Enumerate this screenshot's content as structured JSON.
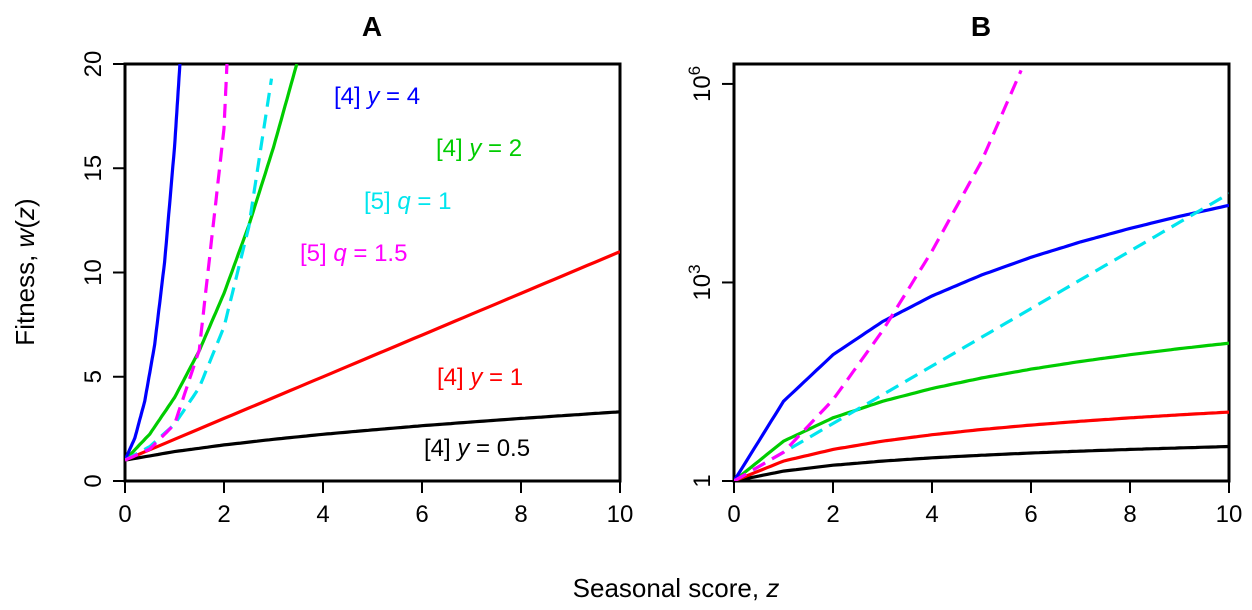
{
  "figure": {
    "xlabel_text": "Seasonal score, ",
    "xlabel_var": "z",
    "ylabel_text": "Fitness, ",
    "ylabel_fn": "w",
    "ylabel_open": "(",
    "ylabel_var": "z",
    "ylabel_close": ")"
  },
  "chart_data": [
    {
      "type": "line",
      "title": "A",
      "xlabel": "Seasonal score, z",
      "ylabel": "Fitness, w(z)",
      "xlim": [
        0,
        10
      ],
      "ylim": [
        0,
        20
      ],
      "y_scale": "linear",
      "xticks": [
        0,
        2,
        4,
        6,
        8,
        10
      ],
      "xtick_labels": [
        "0",
        "2",
        "4",
        "6",
        "8",
        "10"
      ],
      "yticks": [
        0,
        5,
        10,
        15,
        20
      ],
      "ytick_labels": [
        "0",
        "5",
        "10",
        "15",
        "20"
      ],
      "series": [
        {
          "id": "eq4-y0.5",
          "equation": "[4]",
          "param": "y",
          "param_value": "0.5",
          "color": "#000000",
          "dash": "solid",
          "x": [
            0,
            1,
            2,
            3,
            4,
            5,
            6,
            7,
            8,
            9,
            10
          ],
          "y": [
            1.0,
            1.41,
            1.73,
            2.0,
            2.24,
            2.45,
            2.65,
            2.83,
            3.0,
            3.16,
            3.32
          ]
        },
        {
          "id": "eq4-y1",
          "equation": "[4]",
          "param": "y",
          "param_value": "1",
          "color": "#ff0000",
          "dash": "solid",
          "x": [
            0,
            2,
            4,
            6,
            8,
            10
          ],
          "y": [
            1,
            3,
            5,
            7,
            9,
            11
          ]
        },
        {
          "id": "eq4-y2",
          "equation": "[4]",
          "param": "y",
          "param_value": "2",
          "color": "#00cc00",
          "dash": "solid",
          "x": [
            0,
            0.5,
            1,
            1.5,
            2,
            2.5,
            3,
            3.47
          ],
          "y": [
            1.0,
            2.25,
            4.0,
            6.25,
            9.0,
            12.25,
            16.0,
            20.0
          ]
        },
        {
          "id": "eq4-y4",
          "equation": "[4]",
          "param": "y",
          "param_value": "4",
          "color": "#0000ff",
          "dash": "solid",
          "x": [
            0,
            0.2,
            0.4,
            0.6,
            0.8,
            1.0,
            1.11
          ],
          "y": [
            1.0,
            2.07,
            3.84,
            6.55,
            10.5,
            16.0,
            20.0
          ]
        },
        {
          "id": "eq5-q1",
          "equation": "[5]",
          "param": "q",
          "param_value": "1",
          "color": "#00e5ee",
          "dash": "dashed",
          "x": [
            0,
            0.5,
            1,
            1.5,
            2,
            2.5,
            2.96
          ],
          "y": [
            1.0,
            1.65,
            2.72,
            4.48,
            7.39,
            12.18,
            19.3
          ]
        },
        {
          "id": "eq5-q1.5",
          "equation": "[5]",
          "param": "q",
          "param_value": "1.5",
          "color": "#ff00ff",
          "dash": "dashed",
          "x": [
            0,
            0.5,
            1,
            1.5,
            2,
            2.06
          ],
          "y": [
            1.0,
            1.53,
            2.72,
            6.29,
            16.9,
            20.0
          ]
        }
      ],
      "annotations": [
        {
          "series": "eq4-y4",
          "bracket": "[4]",
          "var": "y",
          "rest": " = 4",
          "color": "#0000ff"
        },
        {
          "series": "eq4-y2",
          "bracket": "[4]",
          "var": "y",
          "rest": " = 2",
          "color": "#00cc00"
        },
        {
          "series": "eq5-q1",
          "bracket": "[5]",
          "var": "q",
          "rest": " = 1",
          "color": "#00e5ee"
        },
        {
          "series": "eq5-q1.5",
          "bracket": "[5]",
          "var": "q",
          "rest": " = 1.5",
          "color": "#ff00ff"
        },
        {
          "series": "eq4-y1",
          "bracket": "[4]",
          "var": "y",
          "rest": " = 1",
          "color": "#ff0000"
        },
        {
          "series": "eq4-y0.5",
          "bracket": "[4]",
          "var": "y",
          "rest": " = 0.5",
          "color": "#000000"
        }
      ],
      "grid": false
    },
    {
      "type": "line",
      "title": "B",
      "xlabel": "Seasonal score, z",
      "ylabel": "Fitness, w(z)",
      "xlim": [
        0,
        10
      ],
      "ylim": [
        1,
        2000000
      ],
      "y_scale": "log",
      "xticks": [
        0,
        2,
        4,
        6,
        8,
        10
      ],
      "xtick_labels": [
        "0",
        "2",
        "4",
        "6",
        "8",
        "10"
      ],
      "yticks": [
        1,
        1000,
        1000000
      ],
      "ytick_labels": [
        {
          "base": "1",
          "exp": ""
        },
        {
          "base": "10",
          "exp": "3"
        },
        {
          "base": "10",
          "exp": "6"
        }
      ],
      "series": [
        {
          "id": "eq4-y0.5",
          "color": "#000000",
          "dash": "solid",
          "x": [
            0,
            1,
            2,
            3,
            4,
            5,
            6,
            7,
            8,
            9,
            10
          ],
          "y": [
            1.0,
            1.41,
            1.73,
            2.0,
            2.24,
            2.45,
            2.65,
            2.83,
            3.0,
            3.16,
            3.32
          ]
        },
        {
          "id": "eq4-y1",
          "color": "#ff0000",
          "dash": "solid",
          "x": [
            0,
            1,
            2,
            3,
            4,
            5,
            6,
            7,
            8,
            9,
            10
          ],
          "y": [
            1,
            2,
            3,
            4,
            5,
            6,
            7,
            8,
            9,
            10,
            11
          ]
        },
        {
          "id": "eq4-y2",
          "color": "#00cc00",
          "dash": "solid",
          "x": [
            0,
            1,
            2,
            3,
            4,
            5,
            6,
            7,
            8,
            9,
            10
          ],
          "y": [
            1,
            4,
            9,
            16,
            25,
            36,
            49,
            64,
            81,
            100,
            121
          ]
        },
        {
          "id": "eq4-y4",
          "color": "#0000ff",
          "dash": "solid",
          "x": [
            0,
            1,
            2,
            3,
            4,
            5,
            6,
            7,
            8,
            9,
            10
          ],
          "y": [
            1,
            16,
            81,
            256,
            625,
            1296,
            2401,
            4096,
            6561,
            10000,
            14641
          ]
        },
        {
          "id": "eq5-q1",
          "color": "#00e5ee",
          "dash": "dashed",
          "x": [
            0,
            2,
            4,
            6,
            8,
            10
          ],
          "y": [
            1.0,
            7.39,
            54.6,
            403,
            2981,
            22026
          ]
        },
        {
          "id": "eq5-q1.5",
          "color": "#ff00ff",
          "dash": "dashed",
          "x": [
            0,
            1,
            2,
            3,
            4,
            5,
            5.8
          ],
          "y": [
            1.0,
            2.72,
            16.9,
            186,
            2981,
            67500,
            1600000
          ]
        }
      ],
      "grid": false
    }
  ]
}
